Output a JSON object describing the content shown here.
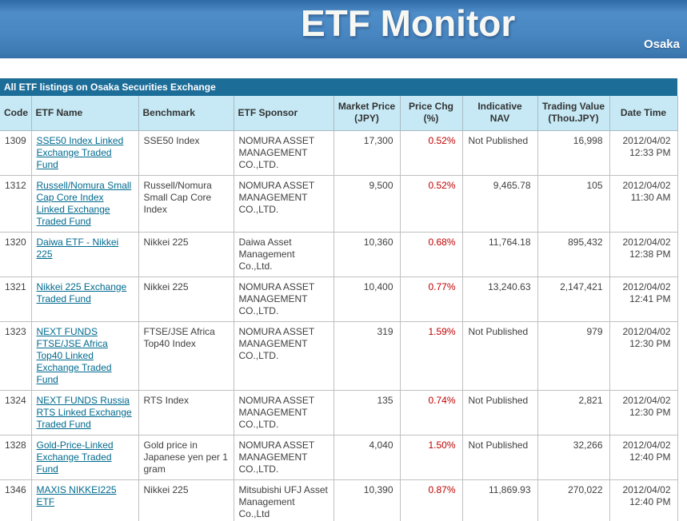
{
  "banner": {
    "title": "ETF Monitor",
    "exchange": "Osaka"
  },
  "colors": {
    "banner_blue": "#4886c1",
    "title_bar": "#1d6d99",
    "header_bg": "#c6e9f5",
    "link": "#006a8e",
    "price_chg_red": "#c00000",
    "grid_line": "#c0c0c0"
  },
  "table": {
    "title": "All ETF listings on Osaka Securities Exchange",
    "columns": [
      "Code",
      "ETF Name",
      "Benchmark",
      "ETF Sponsor",
      "Market Price (JPY)",
      "Price Chg (%)",
      "Indicative NAV",
      "Trading Value (Thou.JPY)",
      "Date Time"
    ],
    "rows": [
      {
        "code": "1309",
        "name": "SSE50 Index Linked Exchange Traded Fund",
        "benchmark": "SSE50 Index",
        "sponsor": "NOMURA ASSET MANAGEMENT CO.,LTD.",
        "market_price": "17,300",
        "price_chg": "0.52%",
        "indicative_nav": "Not Published",
        "trading_value": "16,998",
        "date": "2012/04/02",
        "time": "12:33 PM"
      },
      {
        "code": "1312",
        "name": "Russell/Nomura Small Cap Core Index Linked Exchange Traded Fund",
        "benchmark": "Russell/Nomura Small Cap Core Index",
        "sponsor": "NOMURA ASSET MANAGEMENT CO.,LTD.",
        "market_price": "9,500",
        "price_chg": "0.52%",
        "indicative_nav": "9,465.78",
        "trading_value": "105",
        "date": "2012/04/02",
        "time": "11:30 AM"
      },
      {
        "code": "1320",
        "name": "Daiwa ETF - Nikkei 225",
        "benchmark": "Nikkei 225",
        "sponsor": "Daiwa Asset Management Co.,Ltd.",
        "market_price": "10,360",
        "price_chg": "0.68%",
        "indicative_nav": "11,764.18",
        "trading_value": "895,432",
        "date": "2012/04/02",
        "time": "12:38 PM"
      },
      {
        "code": "1321",
        "name": "Nikkei 225 Exchange Traded Fund",
        "benchmark": "Nikkei 225",
        "sponsor": "NOMURA ASSET MANAGEMENT CO.,LTD.",
        "market_price": "10,400",
        "price_chg": "0.77%",
        "indicative_nav": "13,240.63",
        "trading_value": "2,147,421",
        "date": "2012/04/02",
        "time": "12:41 PM"
      },
      {
        "code": "1323",
        "name": "NEXT FUNDS FTSE/JSE Africa Top40 Linked Exchange Traded Fund",
        "benchmark": "FTSE/JSE Africa Top40 Index",
        "sponsor": "NOMURA ASSET MANAGEMENT CO.,LTD.",
        "market_price": "319",
        "price_chg": "1.59%",
        "indicative_nav": "Not Published",
        "trading_value": "979",
        "date": "2012/04/02",
        "time": "12:30 PM"
      },
      {
        "code": "1324",
        "name": "NEXT FUNDS Russia RTS Linked Exchange Traded Fund",
        "benchmark": "RTS Index",
        "sponsor": "NOMURA ASSET MANAGEMENT CO.,LTD.",
        "market_price": "135",
        "price_chg": "0.74%",
        "indicative_nav": "Not Published",
        "trading_value": "2,821",
        "date": "2012/04/02",
        "time": "12:30 PM"
      },
      {
        "code": "1328",
        "name": "Gold-Price-Linked Exchange Traded Fund",
        "benchmark": "Gold price in Japanese yen per 1 gram",
        "sponsor": "NOMURA ASSET MANAGEMENT CO.,LTD.",
        "market_price": "4,040",
        "price_chg": "1.50%",
        "indicative_nav": "Not Published",
        "trading_value": "32,266",
        "date": "2012/04/02",
        "time": "12:40 PM"
      },
      {
        "code": "1346",
        "name": "MAXIS NIKKEI225 ETF",
        "benchmark": "Nikkei 225",
        "sponsor": "Mitsubishi UFJ Asset Management Co.,Ltd",
        "market_price": "10,390",
        "price_chg": "0.87%",
        "indicative_nav": "11,869.93",
        "trading_value": "270,022",
        "date": "2012/04/02",
        "time": "12:40 PM"
      }
    ]
  }
}
